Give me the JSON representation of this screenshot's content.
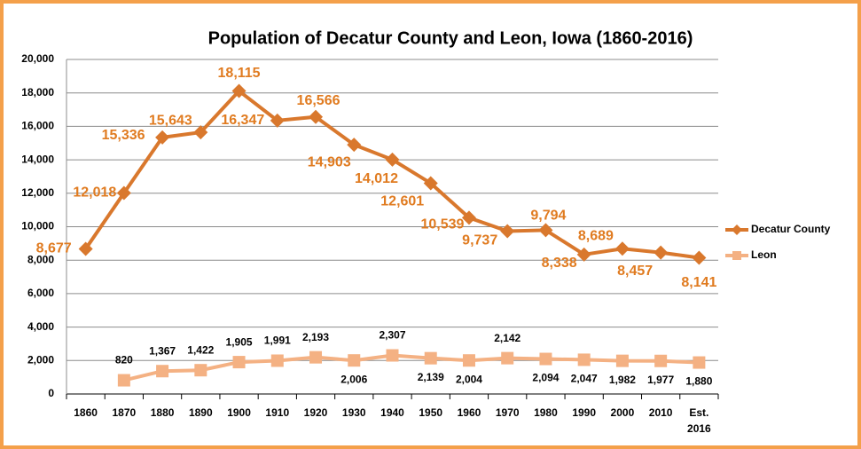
{
  "chart_data": {
    "type": "line",
    "title": "Population of Decatur County and Leon, Iowa (1860-2016)",
    "categories": [
      "1860",
      "1870",
      "1880",
      "1890",
      "1900",
      "1910",
      "1920",
      "1930",
      "1940",
      "1950",
      "1960",
      "1970",
      "1980",
      "1990",
      "2000",
      "2010",
      "Est. 2016"
    ],
    "series": [
      {
        "name": "Decatur County",
        "color": "#d9782d",
        "values": [
          8677,
          12018,
          15336,
          15643,
          18115,
          16347,
          16566,
          14903,
          14012,
          12601,
          10539,
          9737,
          9794,
          8338,
          8689,
          8457,
          8141
        ],
        "value_labels": [
          "8,677",
          "12,018",
          "15,336",
          "15,643",
          "18,115",
          "16,347",
          "16,566",
          "14,903",
          "14,012",
          "12,601",
          "10,539",
          "9,737",
          "9,794",
          "8,338",
          "8,689",
          "8,457",
          "8,141"
        ]
      },
      {
        "name": "Leon",
        "color": "#f4b183",
        "values": [
          null,
          820,
          1367,
          1422,
          1905,
          1991,
          2193,
          2006,
          2307,
          2139,
          2004,
          2142,
          2094,
          2047,
          1982,
          1977,
          1880
        ],
        "value_labels": [
          null,
          "820",
          "1,367",
          "1,422",
          "1,905",
          "1,991",
          "2,193",
          "2,006",
          "2,307",
          "2,139",
          "2,004",
          "2,142",
          "2,094",
          "2,047",
          "1,982",
          "1,977",
          "1,880"
        ]
      }
    ],
    "ylim": [
      0,
      20000
    ],
    "yticks": [
      0,
      {
        "value": 2000,
        "label": "2,000"
      },
      {
        "value": 4000,
        "label": "4,000"
      },
      {
        "value": 6000,
        "label": "6,000"
      },
      {
        "value": 8000,
        "label": "8,000"
      },
      {
        "value": 10000,
        "label": "10,000"
      },
      {
        "value": 12000,
        "label": "12,000"
      },
      {
        "value": 14000,
        "label": "14,000"
      },
      {
        "value": 16000,
        "label": "16,000"
      },
      {
        "value": 18000,
        "label": "18,000"
      },
      {
        "value": 20000,
        "label": "20,000"
      }
    ],
    "grid": true,
    "legend": "right"
  }
}
